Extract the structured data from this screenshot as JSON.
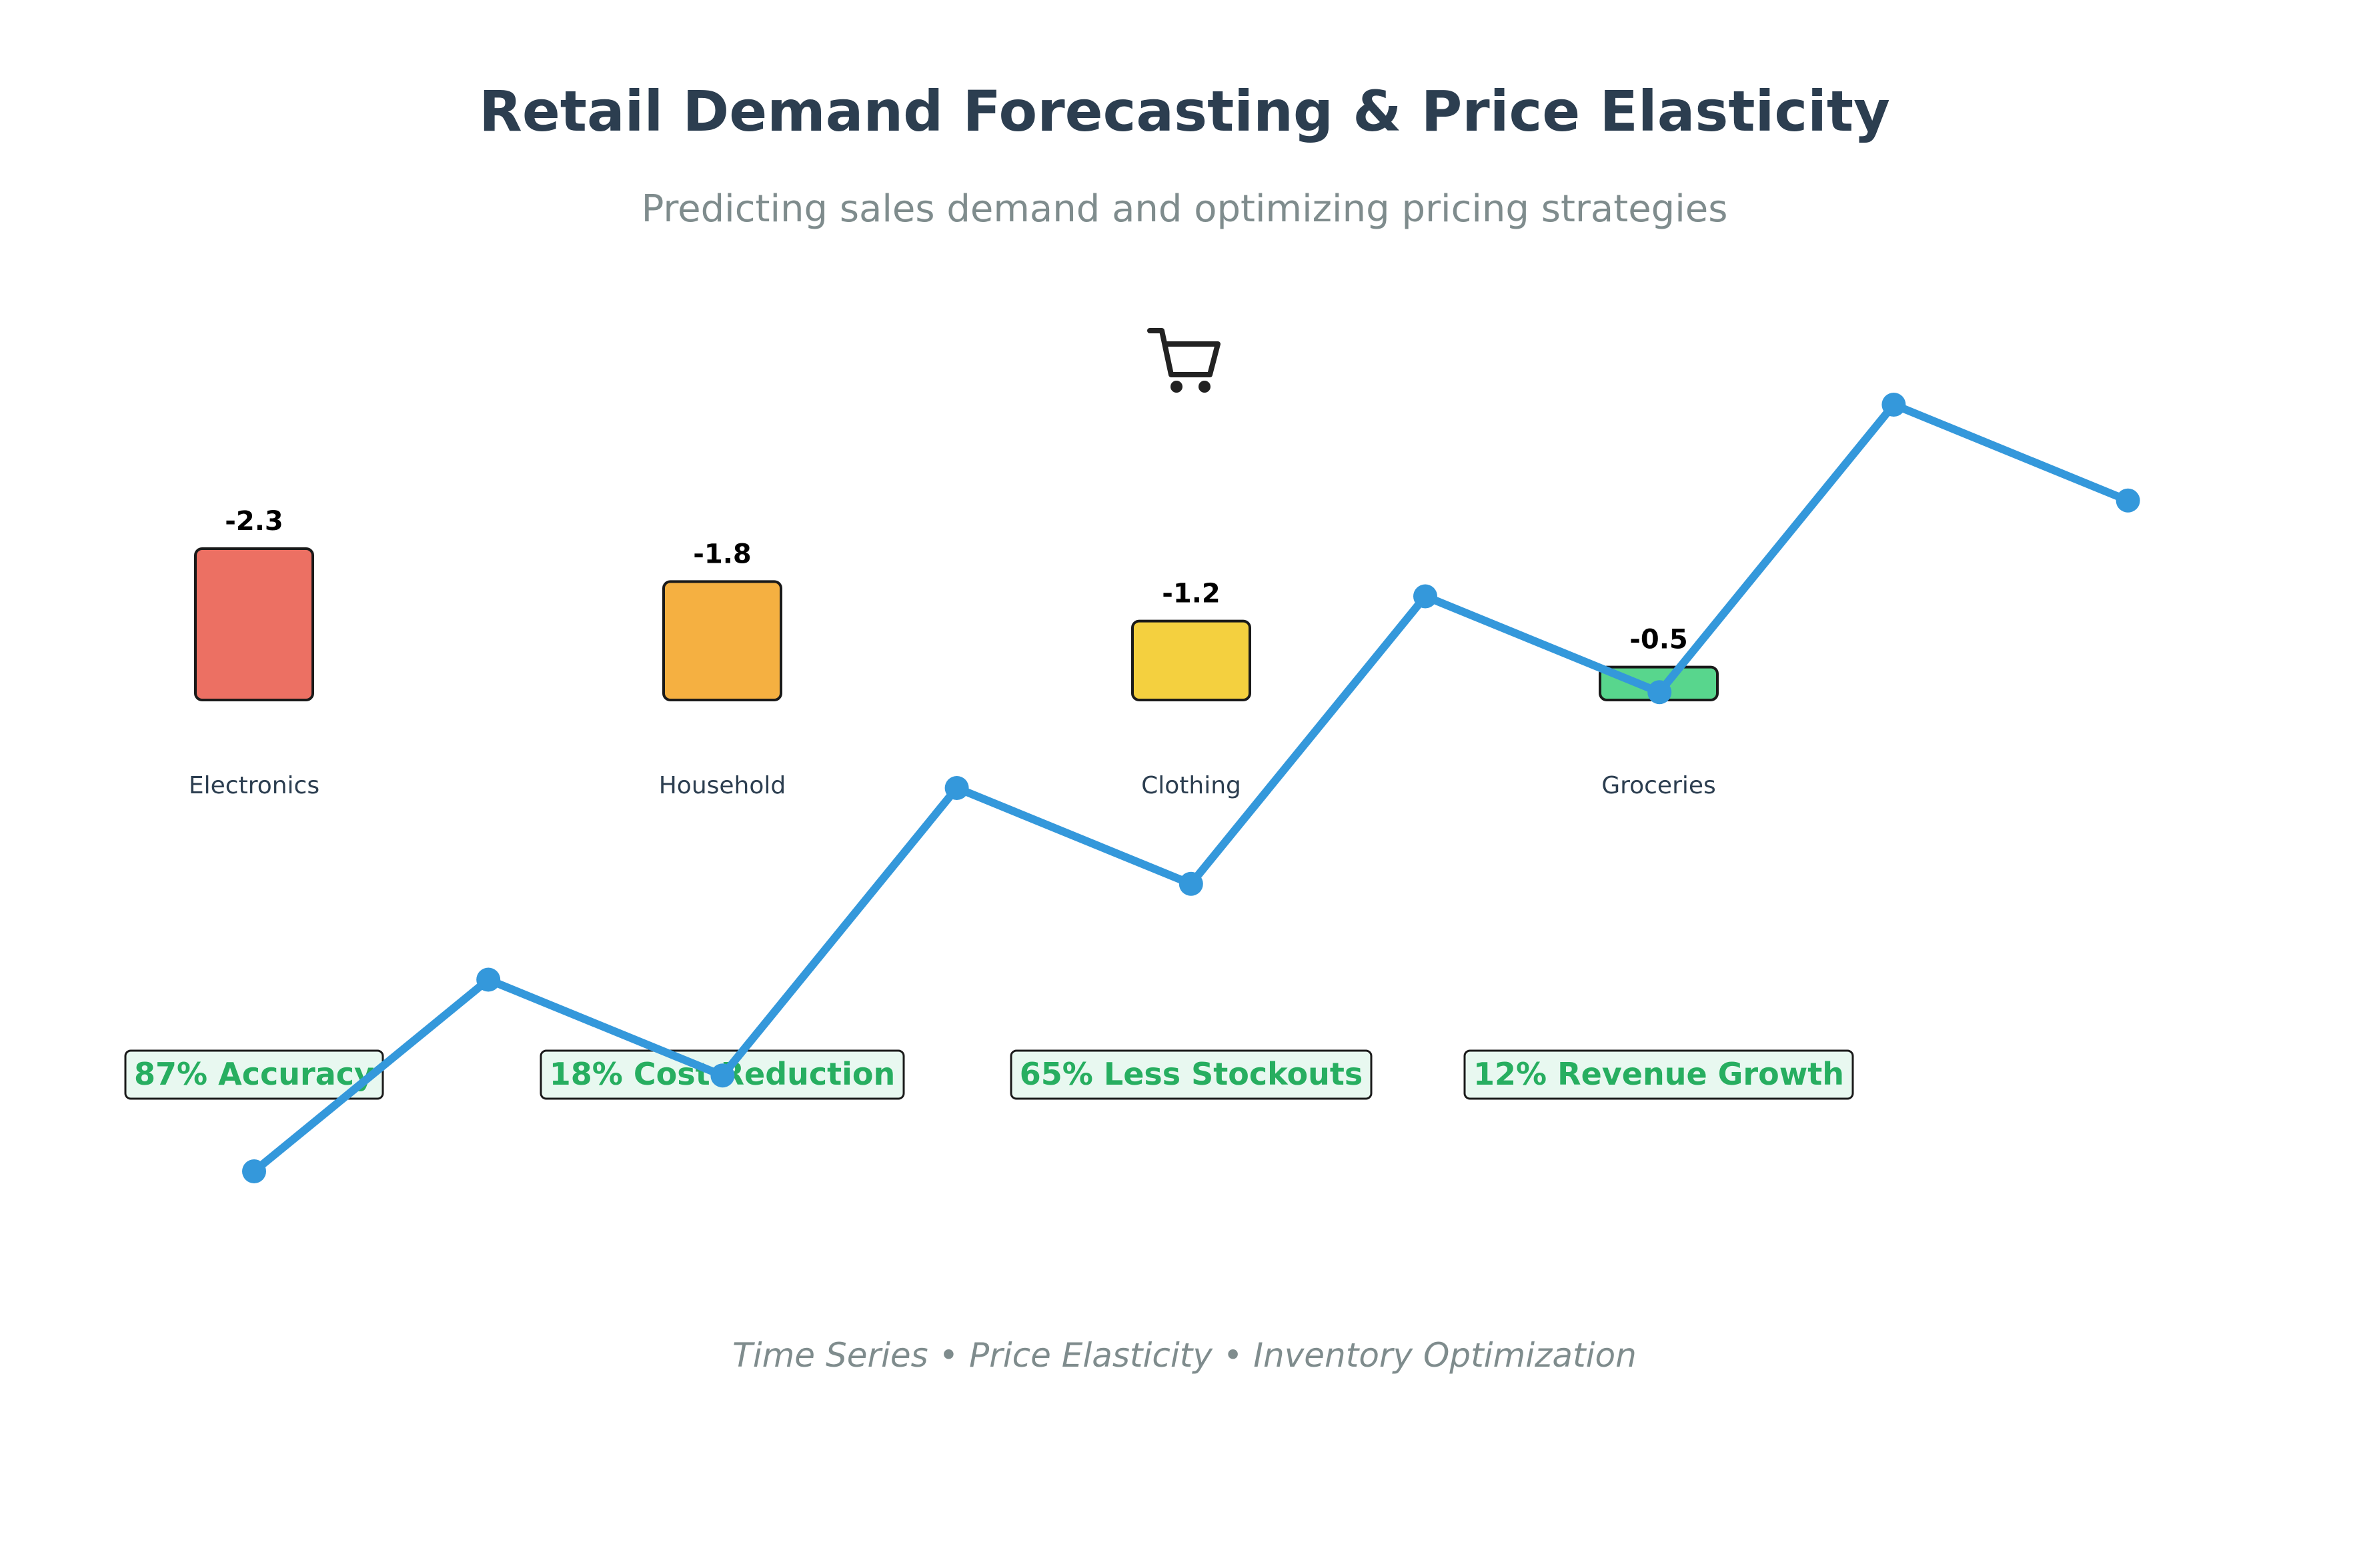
{
  "header": {
    "title": "Retail Demand Forecasting & Price Elasticity",
    "subtitle": "Predicting sales demand and optimizing pricing strategies",
    "icon": "shopping-cart-icon"
  },
  "chart_data": [
    {
      "type": "bar",
      "title": "",
      "categories": [
        "Electronics",
        "Household",
        "Clothing",
        "Groceries"
      ],
      "values": [
        -2.3,
        -1.8,
        -1.2,
        -0.5
      ],
      "value_labels": [
        "-2.3",
        "-1.8",
        "-1.2",
        "-0.5"
      ],
      "colors": [
        "#ec7063",
        "#f5b041",
        "#f4d03f",
        "#58d68d"
      ]
    },
    {
      "type": "line",
      "title": "",
      "x": [
        1,
        2,
        3,
        4,
        5,
        6,
        7,
        8,
        9
      ],
      "values": [
        1,
        2,
        1.5,
        3,
        2.5,
        4,
        3.5,
        5,
        4.5
      ],
      "color": "#3498db"
    }
  ],
  "metrics": [
    {
      "label": "87% Accuracy"
    },
    {
      "label": "18% Cost Reduction"
    },
    {
      "label": "65% Less Stockouts"
    },
    {
      "label": "12% Revenue Growth"
    }
  ],
  "metric_colors": {
    "text": "#27ae60",
    "background": "#e8f8f0",
    "border": "#1a1a1a"
  },
  "footer": {
    "text": "Time Series • Price Elasticity • Inventory Optimization"
  }
}
